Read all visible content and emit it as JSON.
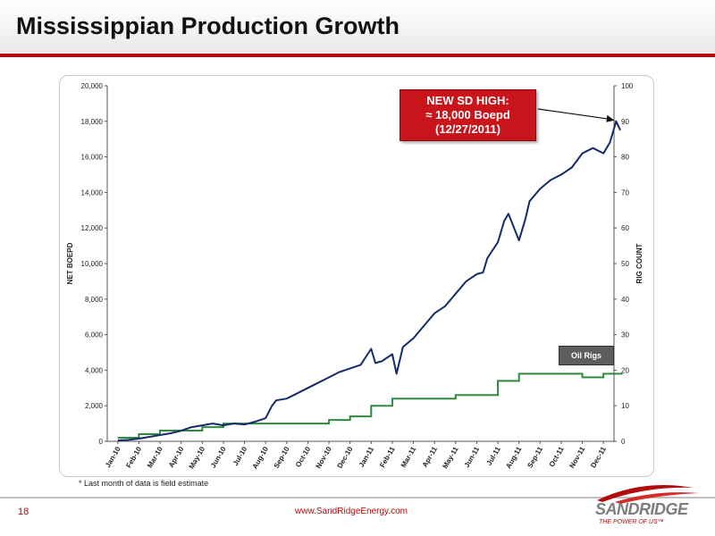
{
  "slide": {
    "title": "Mississippian Production Growth",
    "page_number": "18",
    "footnote": "* Last month of data is field estimate",
    "website": "www.SandRidgeEnergy.com",
    "logo_text": "SANDRIDGE",
    "logo_tagline": "THE POWER OF US™",
    "accent_color": "#b20b0b"
  },
  "callout": {
    "lines": [
      "NEW SD HIGH:",
      "≈ 18,000 Boepd",
      "(12/27/2011)"
    ],
    "color": "#c8141a"
  },
  "chart_data": {
    "type": "line",
    "xlabel": "",
    "ylabel": "NET BOEPD",
    "y2label": "RIG COUNT",
    "ylim": [
      0,
      20000
    ],
    "y2lim": [
      0,
      100
    ],
    "yticks": [
      "0",
      "2,000",
      "4,000",
      "6,000",
      "8,000",
      "10,000",
      "12,000",
      "14,000",
      "16,000",
      "18,000",
      "20,000"
    ],
    "y2ticks": [
      "0",
      "10",
      "20",
      "30",
      "40",
      "50",
      "60",
      "70",
      "80",
      "90",
      "100"
    ],
    "categories": [
      "Jan-10",
      "Feb-10",
      "Mar-10",
      "Apr-10",
      "May-10",
      "Jun-10",
      "Jul-10",
      "Aug-10",
      "Sep-10",
      "Oct-10",
      "Nov-10",
      "Dec-10",
      "Jan-11",
      "Feb-11",
      "Mar-11",
      "Apr-11",
      "May-11",
      "Jun-11",
      "Jul-11",
      "Aug-11",
      "Sep-11",
      "Oct-11",
      "Nov-11",
      "Dec-11"
    ],
    "grid": false,
    "legend": "lower-right",
    "series": [
      {
        "name": "",
        "axis": "left",
        "color": "#142a6b",
        "x": [
          0,
          0.5,
          1,
          1.5,
          2,
          2.5,
          3,
          3.5,
          4,
          4.5,
          5,
          5.5,
          6,
          6.5,
          7,
          7.3,
          7.5,
          8,
          8.5,
          9,
          9.5,
          10,
          10.5,
          11,
          11.5,
          12,
          12.2,
          12.5,
          13,
          13.2,
          13.5,
          14,
          14.5,
          15,
          15.5,
          16,
          16.5,
          17,
          17.3,
          17.5,
          18,
          18.3,
          18.5,
          19,
          19.3,
          19.5,
          20,
          20.5,
          21,
          21.5,
          22,
          22.5,
          23,
          23.3,
          23.6,
          23.8
        ],
        "values": [
          50,
          80,
          150,
          250,
          350,
          450,
          600,
          800,
          900,
          1000,
          900,
          1000,
          950,
          1100,
          1300,
          2000,
          2300,
          2400,
          2700,
          3000,
          3300,
          3600,
          3900,
          4100,
          4300,
          5200,
          4400,
          4500,
          4900,
          3800,
          5300,
          5800,
          6500,
          7200,
          7600,
          8300,
          9000,
          9400,
          9500,
          10300,
          11200,
          12400,
          12800,
          11300,
          12500,
          13500,
          14200,
          14700,
          15000,
          15400,
          16200,
          16500,
          16200,
          16800,
          18000,
          17500
        ]
      },
      {
        "name": "Oil Rigs",
        "axis": "right",
        "color": "#2e8b3e",
        "x": [
          0,
          1,
          2,
          3,
          4,
          5,
          6,
          7,
          8,
          9,
          10,
          11,
          12,
          13,
          14,
          15,
          16,
          17,
          18,
          19,
          20,
          21,
          22,
          23,
          23.9
        ],
        "values": [
          1,
          2,
          3,
          3,
          4,
          5,
          5,
          5,
          5,
          5,
          6,
          7,
          10,
          12,
          12,
          12,
          13,
          13,
          17,
          19,
          19,
          19,
          18,
          19,
          19
        ]
      }
    ]
  }
}
